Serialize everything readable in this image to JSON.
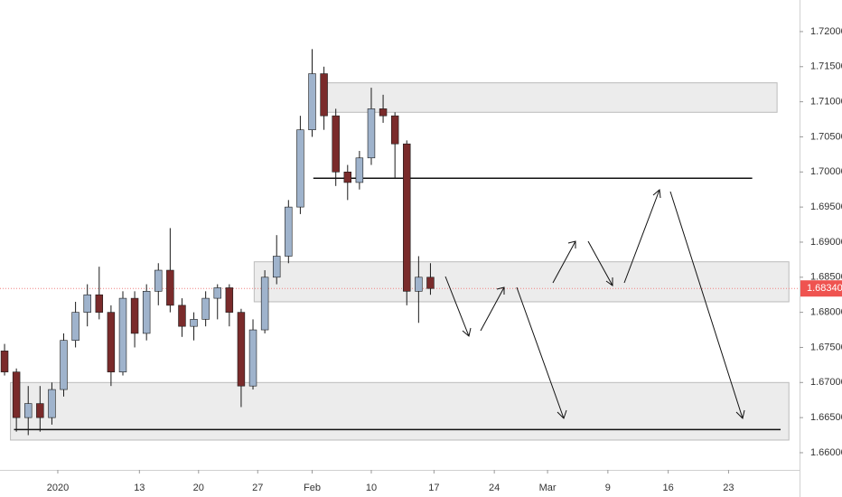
{
  "chart_data": {
    "type": "candlestick",
    "x": [
      -4.5,
      -3.5,
      -2.5,
      -1.5,
      -0.5,
      0.5,
      1.5,
      2.5,
      3.5,
      4.5,
      5.5,
      6.5,
      7.5,
      8.5,
      9.5,
      10.5,
      11.5,
      12.5,
      13.5,
      14.5,
      15.5,
      16.5,
      17.5,
      18.5,
      19.5,
      20.5,
      21.5,
      22.5,
      23.5,
      24.5,
      25.5,
      26.5,
      27.5,
      28.5,
      29.5,
      30.5,
      31.5
    ],
    "open": [
      1.6745,
      1.6715,
      1.665,
      1.667,
      1.665,
      1.669,
      1.676,
      1.68,
      1.6825,
      1.68,
      1.6715,
      1.682,
      1.677,
      1.683,
      1.686,
      1.681,
      1.678,
      1.679,
      1.682,
      1.6835,
      1.68,
      1.6695,
      1.6775,
      1.685,
      1.688,
      1.695,
      1.706,
      1.714,
      1.708,
      1.7,
      1.6985,
      1.702,
      1.709,
      1.708,
      1.704,
      1.683,
      1.685
    ],
    "high": [
      1.6755,
      1.672,
      1.6695,
      1.6695,
      1.67,
      1.677,
      1.6815,
      1.684,
      1.6865,
      1.681,
      1.683,
      1.683,
      1.684,
      1.687,
      1.692,
      1.682,
      1.68,
      1.683,
      1.684,
      1.684,
      1.6805,
      1.679,
      1.686,
      1.691,
      1.696,
      1.708,
      1.7175,
      1.715,
      1.709,
      1.701,
      1.703,
      1.712,
      1.711,
      1.7085,
      1.7045,
      1.688,
      1.687
    ],
    "low": [
      1.671,
      1.663,
      1.6625,
      1.663,
      1.664,
      1.668,
      1.675,
      1.678,
      1.679,
      1.6695,
      1.671,
      1.675,
      1.676,
      1.681,
      1.68,
      1.6765,
      1.676,
      1.678,
      1.679,
      1.678,
      1.6665,
      1.669,
      1.677,
      1.684,
      1.687,
      1.694,
      1.705,
      1.706,
      1.698,
      1.696,
      1.6975,
      1.701,
      1.707,
      1.699,
      1.681,
      1.6785,
      1.6825
    ],
    "close": [
      1.6715,
      1.665,
      1.667,
      1.665,
      1.669,
      1.676,
      1.68,
      1.6825,
      1.68,
      1.6715,
      1.682,
      1.677,
      1.683,
      1.686,
      1.681,
      1.678,
      1.679,
      1.682,
      1.6835,
      1.68,
      1.6695,
      1.6775,
      1.685,
      1.688,
      1.695,
      1.706,
      1.714,
      1.708,
      1.7,
      1.6985,
      1.702,
      1.709,
      1.708,
      1.704,
      1.683,
      1.685,
      1.6834
    ],
    "up_color": "#9fb3cc",
    "down_color": "#7a2b2b",
    "wick_color": "#1a1a1a",
    "zones": [
      {
        "x": [
          22.7,
          60.8
        ],
        "y": [
          1.7085,
          1.7127
        ]
      },
      {
        "x": [
          16.6,
          61.8
        ],
        "y": [
          1.6815,
          1.6872
        ]
      },
      {
        "x": [
          -4.0,
          61.8
        ],
        "y": [
          1.6618,
          1.67
        ]
      }
    ],
    "levels": [
      {
        "x": [
          21.6,
          58.7
        ],
        "y": 1.6991
      },
      {
        "x": [
          -3.7,
          61.1
        ],
        "y": 1.6633
      }
    ],
    "last_price": {
      "value": 1.6834,
      "label": "1.68340"
    },
    "xlim": [
      -4.885,
      62.7
    ],
    "ylim": [
      1.65755,
      1.7245
    ],
    "xticks": [
      {
        "value": 0,
        "label": "2020"
      },
      {
        "value": 6.9,
        "label": "13"
      },
      {
        "value": 11.9,
        "label": "20"
      },
      {
        "value": 16.9,
        "label": "27"
      },
      {
        "value": 21.5,
        "label": "Feb"
      },
      {
        "value": 26.5,
        "label": "10"
      },
      {
        "value": 31.8,
        "label": "17"
      },
      {
        "value": 36.9,
        "label": "24"
      },
      {
        "value": 41.4,
        "label": "Mar"
      },
      {
        "value": 46.5,
        "label": "9"
      },
      {
        "value": 51.6,
        "label": "16"
      },
      {
        "value": 56.7,
        "label": "23"
      }
    ],
    "yticks": [
      {
        "value": 1.66,
        "label": "1.66000"
      },
      {
        "value": 1.665,
        "label": "1.66500"
      },
      {
        "value": 1.67,
        "label": "1.67000"
      },
      {
        "value": 1.675,
        "label": "1.67500"
      },
      {
        "value": 1.68,
        "label": "1.68000"
      },
      {
        "value": 1.685,
        "label": "1.68500"
      },
      {
        "value": 1.69,
        "label": "1.69000"
      },
      {
        "value": 1.695,
        "label": "1.69500"
      },
      {
        "value": 1.7,
        "label": "1.70000"
      },
      {
        "value": 1.705,
        "label": "1.70500"
      },
      {
        "value": 1.71,
        "label": "1.71000"
      },
      {
        "value": 1.715,
        "label": "1.71500"
      },
      {
        "value": 1.72,
        "label": "1.72000"
      }
    ]
  }
}
